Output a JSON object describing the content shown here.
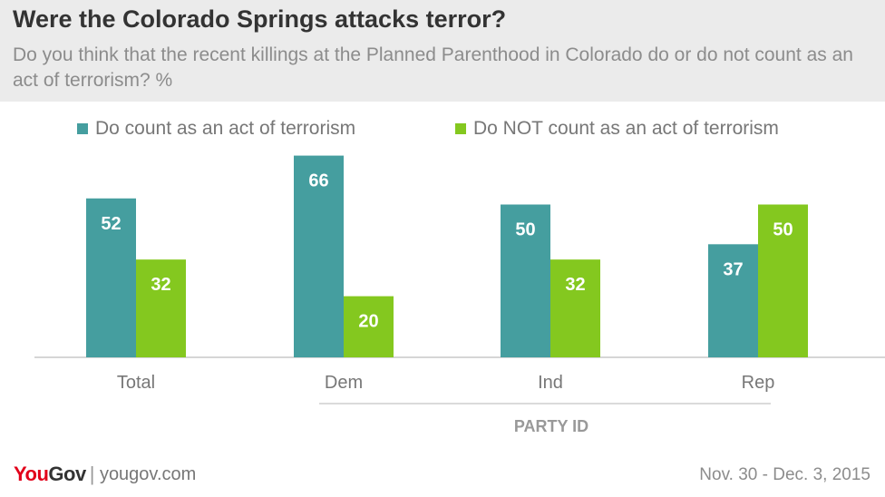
{
  "header": {
    "title": "Were the Colorado Springs attacks terror?",
    "subtitle": "Do you think that the recent killings at the Planned Parenthood in Colorado do or do not count as an act of terrorism? %"
  },
  "colors": {
    "series_a": "#459e9f",
    "series_b": "#84c81f",
    "header_bg": "#ebebeb",
    "brand_red": "#e2001a"
  },
  "chart_data": {
    "type": "bar",
    "categories": [
      "Total",
      "Dem",
      "Ind",
      "Rep"
    ],
    "series": [
      {
        "name": "Do count as an act of terrorism",
        "values": [
          52,
          66,
          50,
          37
        ]
      },
      {
        "name": "Do NOT count as an act of terrorism",
        "values": [
          32,
          20,
          32,
          50
        ]
      }
    ],
    "group_label": "PARTY ID",
    "ylim": [
      0,
      70
    ],
    "legend_position": "top"
  },
  "footer": {
    "logo_you": "You",
    "logo_gov": "Gov",
    "logo_sep": "|",
    "site": "yougov.com",
    "date": "Nov. 30 - Dec. 3, 2015"
  }
}
